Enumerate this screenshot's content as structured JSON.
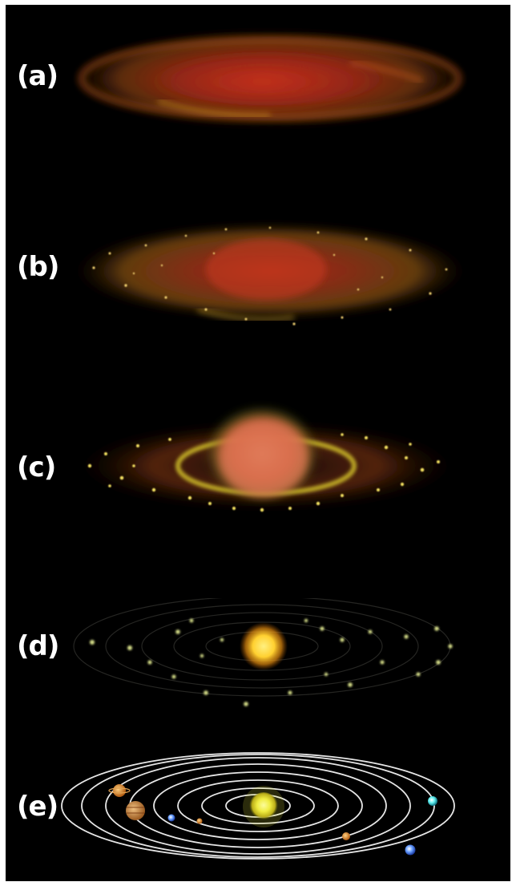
{
  "panels": [
    {
      "id": "a",
      "label": "(a)"
    },
    {
      "id": "b",
      "label": "(b)"
    },
    {
      "id": "c",
      "label": "(c)"
    },
    {
      "id": "d",
      "label": "(d)"
    },
    {
      "id": "e",
      "label": "(e)"
    }
  ],
  "colors": {
    "background": "#000000",
    "label": "#ffffff",
    "dust_red": "#b8321a",
    "dust_orange": "#d66a1c",
    "dust_yellow": "#e8c030",
    "sun": "#ffe14a",
    "orbit": "#e6e6e6"
  }
}
